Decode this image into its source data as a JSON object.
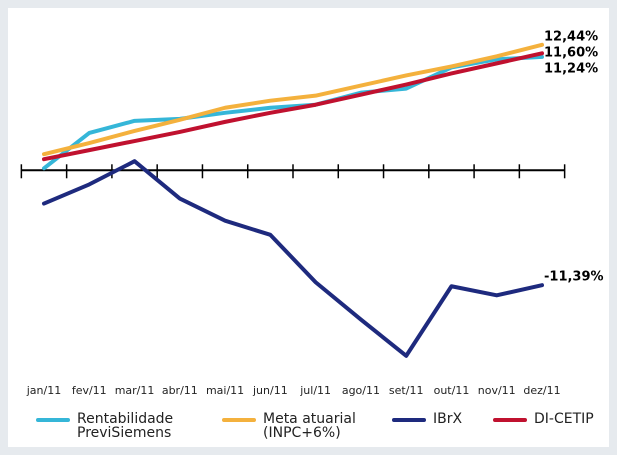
{
  "chart_data": {
    "type": "line",
    "categories": [
      "jan/11",
      "fev/11",
      "mar/11",
      "abr/11",
      "mai/11",
      "jun/11",
      "jul/11",
      "ago/11",
      "set/11",
      "out/11",
      "nov/11",
      "dez/11"
    ],
    "ylim": [
      -20,
      15
    ],
    "series": [
      {
        "name": "Rentabilidade PreviSiemens",
        "color": "#35b6d8",
        "values": [
          0.2,
          3.7,
          4.9,
          5.1,
          5.7,
          6.2,
          6.5,
          7.7,
          8.1,
          10.2,
          11.0,
          11.24
        ],
        "value_labels": [
          null,
          null,
          null,
          null,
          null,
          null,
          null,
          null,
          null,
          null,
          null,
          "11,24%"
        ]
      },
      {
        "name": "Meta atuarial (INPC+6%)",
        "color": "#f4b13d",
        "values": [
          1.6,
          2.7,
          3.9,
          5.0,
          6.2,
          6.9,
          7.4,
          8.4,
          9.4,
          10.3,
          11.3,
          12.44
        ],
        "value_labels": [
          null,
          null,
          null,
          null,
          null,
          null,
          null,
          null,
          null,
          null,
          null,
          "12,44%"
        ]
      },
      {
        "name": "IBrX",
        "color": "#1e2a7e",
        "values": [
          -3.3,
          -1.4,
          0.9,
          -2.8,
          -5.0,
          -6.4,
          -11.1,
          -14.8,
          -18.4,
          -11.5,
          -12.4,
          -11.39
        ],
        "value_labels": [
          null,
          null,
          null,
          null,
          null,
          null,
          null,
          null,
          null,
          null,
          null,
          "-11,39%"
        ]
      },
      {
        "name": "DI-CETIP",
        "color": "#c0112f",
        "values": [
          1.1,
          2.0,
          2.9,
          3.8,
          4.8,
          5.7,
          6.5,
          7.5,
          8.5,
          9.6,
          10.6,
          11.6
        ],
        "value_labels": [
          null,
          null,
          null,
          null,
          null,
          null,
          null,
          null,
          null,
          null,
          null,
          "11,60%"
        ]
      }
    ]
  }
}
